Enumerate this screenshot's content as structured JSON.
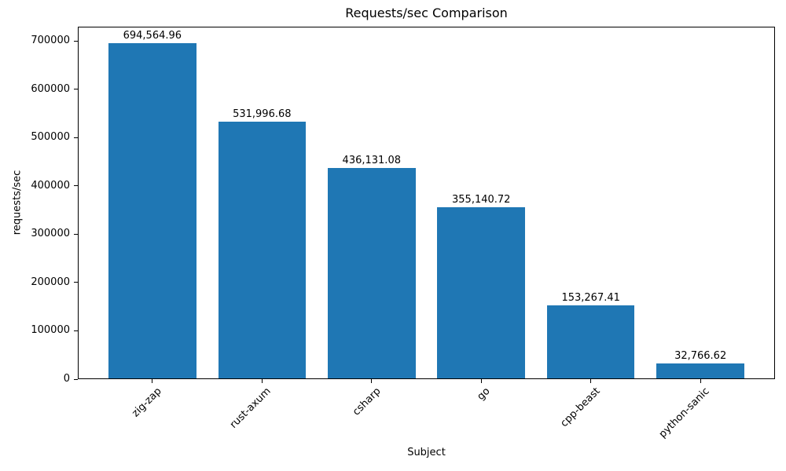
{
  "chart_data": {
    "type": "bar",
    "title": "Requests/sec Comparison",
    "xlabel": "Subject",
    "ylabel": "requests/sec",
    "categories": [
      "zig-zap",
      "rust-axum",
      "csharp",
      "go",
      "cpp-beast",
      "python-sanic"
    ],
    "values": [
      694564.96,
      531996.68,
      436131.08,
      355140.72,
      153267.41,
      32766.62
    ],
    "value_labels": [
      "694,564.96",
      "531,996.68",
      "436,131.08",
      "355,140.72",
      "153,267.41",
      "32,766.62"
    ],
    "bar_color": "#1f77b4",
    "yticks": [
      0,
      100000,
      200000,
      300000,
      400000,
      500000,
      600000,
      700000
    ],
    "ylim": [
      0,
      729293
    ],
    "grid": false,
    "legend": null
  }
}
